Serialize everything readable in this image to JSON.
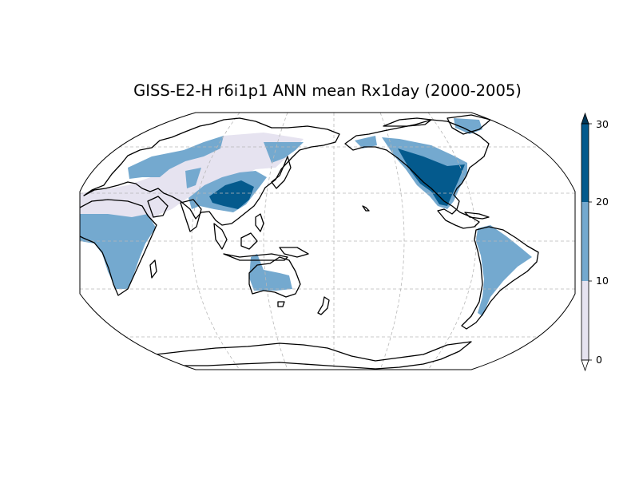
{
  "title": "GISS-E2-H r6i1p1 ANN mean Rx1day (2000-2005)",
  "map": {
    "projection": "robinson",
    "central_longitude": 180,
    "gridlines": true
  },
  "colorbar": {
    "orientation": "vertical",
    "extend": "both",
    "ticks": [
      "0",
      "10",
      "20",
      "30"
    ],
    "levels": [
      {
        "range": [
          0,
          10
        ],
        "color": "#e6e3f0"
      },
      {
        "range": [
          10,
          20
        ],
        "color": "#74a9cf"
      },
      {
        "range": [
          20,
          30
        ],
        "color": "#045a8d"
      }
    ],
    "over_color": "#023858",
    "under_color": "#ffffff"
  },
  "chart_data": {
    "type": "heatmap",
    "title": "GISS-E2-H r6i1p1 ANN mean Rx1day (2000-2005)",
    "variable": "Rx1day",
    "vlim": [
      0,
      30
    ],
    "colorbar_ticks": [
      0,
      10,
      20,
      30
    ],
    "regions": [
      {
        "name": "Central Asia / Siberia",
        "level": "0-10"
      },
      {
        "name": "Western Sahara / Arabia",
        "level": "0-10"
      },
      {
        "name": "Northern Europe / Russia",
        "level": "10-20"
      },
      {
        "name": "Sub-Saharan Africa",
        "level": "10-20"
      },
      {
        "name": "East China",
        "level": "20-30"
      },
      {
        "name": "Australia",
        "level": "10-20"
      },
      {
        "name": "Alaska / Canada",
        "level": "10-20"
      },
      {
        "name": "Western USA",
        "level": "10-20"
      },
      {
        "name": "Southeast USA",
        "level": "20-30"
      },
      {
        "name": "South America",
        "level": "10-20"
      }
    ]
  }
}
